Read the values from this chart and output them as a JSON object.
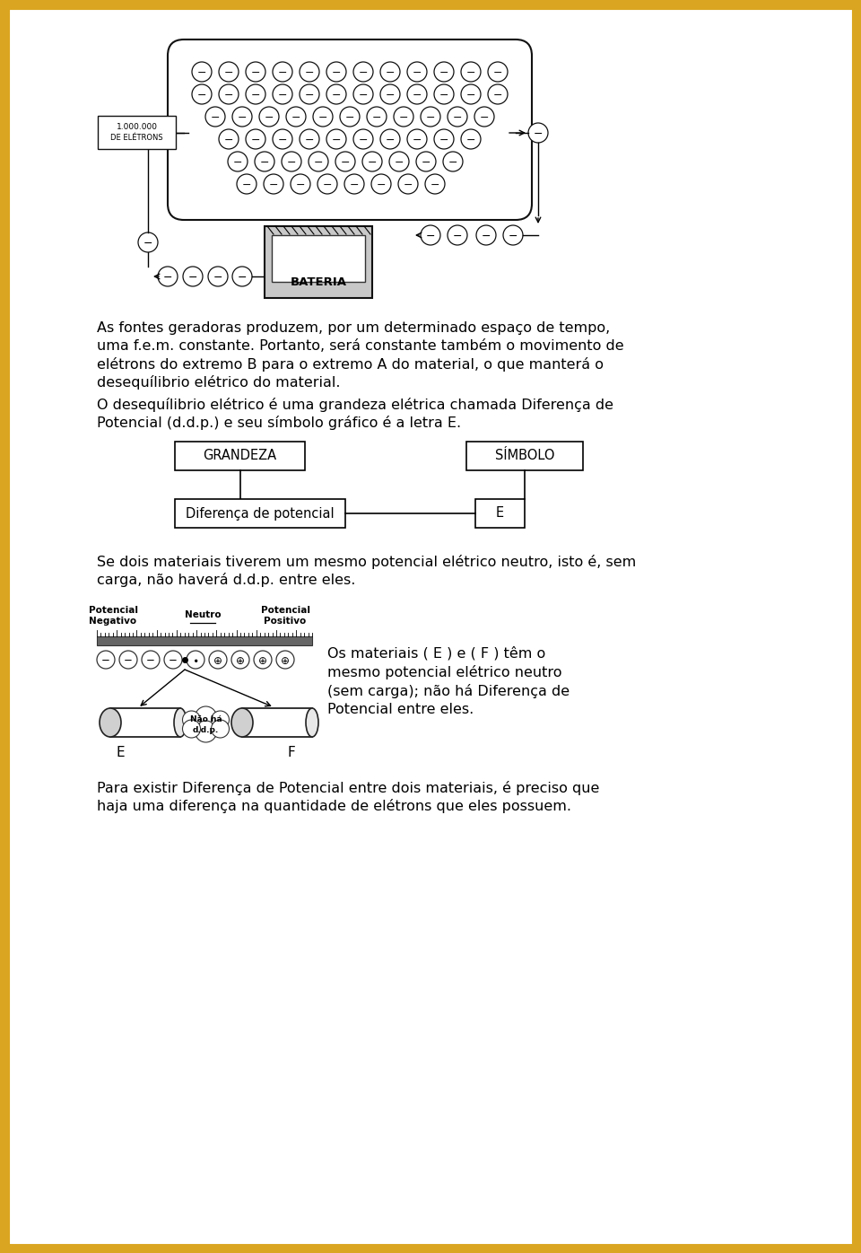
{
  "bg_color": "#ffffff",
  "border_color": "#DAA520",
  "border_width": 8,
  "para1": "As fontes geradoras produzem, por um determinado espaço de tempo,\numa f.e.m. constante. Portanto, será constante também o movimento de\nelétrons do extremo B para o extremo A do material, o que manterá o\ndesequílibrio elétrico do material.",
  "para2_line1": "O desequílibrio elétrico é uma grandeza elétrica chamada Diferença de",
  "para2_line2": "Potencial (d.d.p.) e seu símbolo gráfico é a letra E.",
  "box1": "GRANDEZA",
  "box2": "SÍMBOLO",
  "box3": "Diferença de potencial",
  "box4": "E",
  "para3_line1": "Se dois materiais tiverem um mesmo potencial elétrico neutro, isto é, sem",
  "para3_line2": "carga, não haverá d.d.p. entre eles.",
  "side_text_line1": "Os materiais ( E ) e ( F ) têm o",
  "side_text_line2": "mesmo potencial elétrico neutro",
  "side_text_line3": "(sem carga); não há Diferença de",
  "side_text_line4": "Potencial entre eles.",
  "para4_line1": "Para existir Diferença de Potencial entre dois materiais, é preciso que",
  "para4_line2": "haja uma diferença na quantidade de elétrons que eles possuem.",
  "font_size_body": 11.5,
  "font_size_box": 10.5,
  "text_color": "#000000",
  "label_1000000": "1.000.000",
  "label_eletrons": "DE ELÉTRONS",
  "label_bateria": "BATERIA",
  "label_pot_neg": "Potencial\nNegativo",
  "label_neutro": "Neutro",
  "label_pot_pos": "Potencial\nPositivo",
  "label_nao_ha": "Não há",
  "label_ddp": "d.d.p.",
  "label_E": "E",
  "label_F": "F"
}
